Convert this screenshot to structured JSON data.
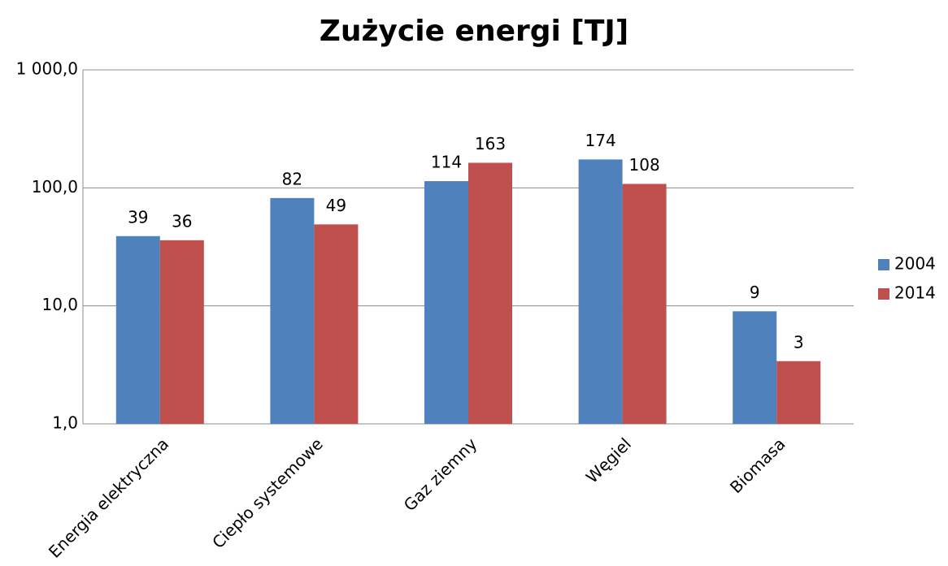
{
  "chart_data": {
    "type": "bar",
    "title": "Zużycie energi [TJ]",
    "categories": [
      "Energia elektryczna",
      "Ciepło systemowe",
      "Gaz ziemny",
      "Węgiel",
      "Biomasa"
    ],
    "series": [
      {
        "name": "2004",
        "color": "#4f81bd",
        "values": [
          39,
          82,
          114,
          174,
          9
        ]
      },
      {
        "name": "2014",
        "color": "#c0504d",
        "values": [
          36,
          49,
          163,
          108,
          3.4
        ],
        "value_labels": [
          "36",
          "49",
          "163",
          "108",
          "3"
        ]
      }
    ],
    "ylim": [
      1,
      1000
    ],
    "log_scale": true,
    "yticks": [
      {
        "value": 1,
        "label": "1,0"
      },
      {
        "value": 10,
        "label": "10,0"
      },
      {
        "value": 100,
        "label": "100,0"
      },
      {
        "value": 1000,
        "label": "1 000,0"
      }
    ],
    "grid": true,
    "legend": "right"
  }
}
